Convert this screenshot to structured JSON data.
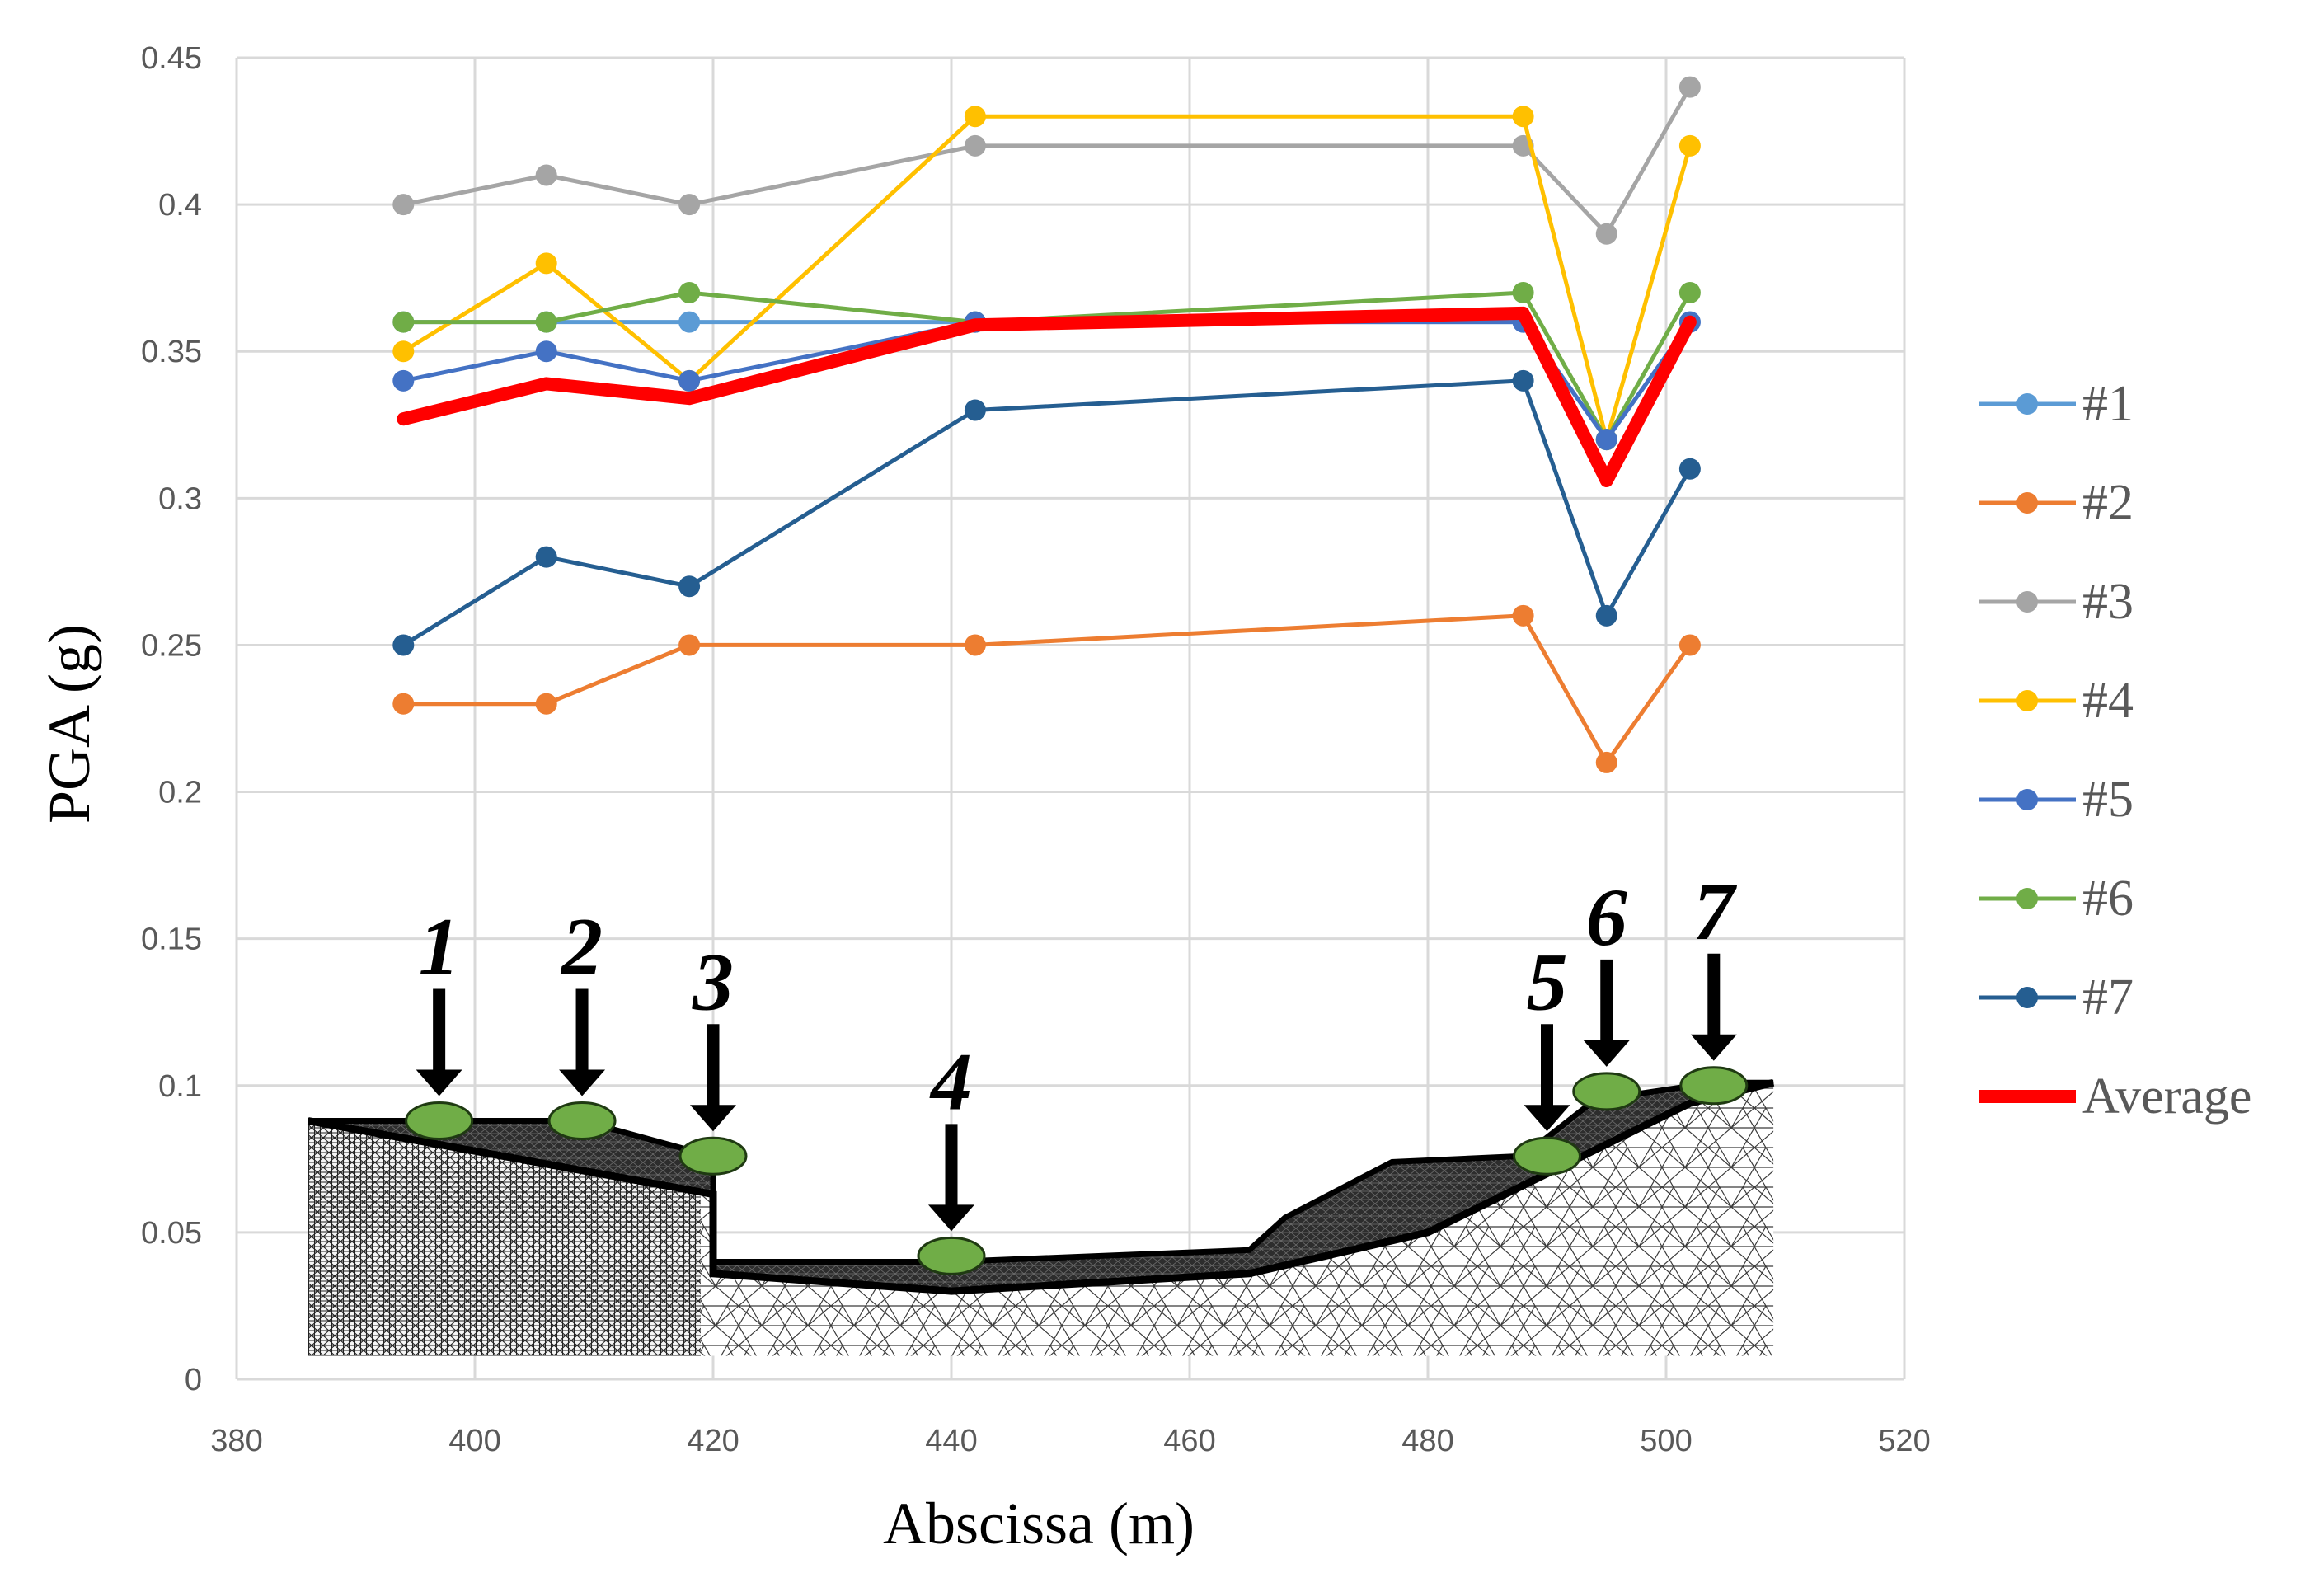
{
  "chart_data": {
    "type": "line",
    "title": "",
    "xlabel": "Abscissa (m)",
    "ylabel": "PGA (g)",
    "xlim": [
      380,
      520
    ],
    "ylim": [
      0,
      0.45
    ],
    "xticks": [
      380,
      400,
      420,
      440,
      460,
      480,
      500,
      520
    ],
    "yticks": [
      0,
      0.05,
      0.1,
      0.15,
      0.2,
      0.25,
      0.3,
      0.35,
      0.4,
      0.45
    ],
    "xtick_labels": [
      "380",
      "400",
      "420",
      "440",
      "460",
      "480",
      "500",
      "520"
    ],
    "ytick_labels": [
      "0",
      "0.05",
      "0.1",
      "0.15",
      "0.2",
      "0.25",
      "0.3",
      "0.35",
      "0.4",
      "0.45"
    ],
    "grid": true,
    "legend_position": "right",
    "x": [
      394,
      406,
      418,
      442,
      488,
      495,
      502
    ],
    "series": [
      {
        "name": "#1",
        "color": "#5B9BD5",
        "values": [
          0.36,
          0.36,
          0.36,
          0.36,
          0.36,
          0.32,
          0.36
        ]
      },
      {
        "name": "#2",
        "color": "#ED7D31",
        "values": [
          0.23,
          0.23,
          0.25,
          0.25,
          0.26,
          0.21,
          0.25
        ]
      },
      {
        "name": "#3",
        "color": "#A5A5A5",
        "values": [
          0.4,
          0.41,
          0.4,
          0.42,
          0.42,
          0.39,
          0.44
        ]
      },
      {
        "name": "#4",
        "color": "#FFC000",
        "values": [
          0.35,
          0.38,
          0.34,
          0.43,
          0.43,
          0.32,
          0.42
        ]
      },
      {
        "name": "#5",
        "color": "#4472C4",
        "values": [
          0.34,
          0.35,
          0.34,
          0.36,
          0.36,
          0.32,
          0.36
        ]
      },
      {
        "name": "#6",
        "color": "#70AD47",
        "values": [
          0.36,
          0.36,
          0.37,
          0.36,
          0.37,
          0.32,
          0.37
        ]
      },
      {
        "name": "#7",
        "color": "#255E91",
        "values": [
          0.25,
          0.28,
          0.27,
          0.33,
          0.34,
          0.26,
          0.31
        ]
      },
      {
        "name": "Average",
        "color": "#FF0000",
        "values": [
          0.327,
          0.339,
          0.334,
          0.359,
          0.363,
          0.306,
          0.36
        ],
        "markers": false,
        "thick": true
      }
    ],
    "inset": {
      "description_type": "cross-section mesh",
      "station_labels": [
        "1",
        "2",
        "3",
        "4",
        "5",
        "6",
        "7"
      ],
      "station_x": [
        397,
        409,
        420,
        440,
        490,
        495,
        504
      ],
      "station_y": [
        0.088,
        0.088,
        0.076,
        0.042,
        0.076,
        0.098,
        0.1
      ],
      "surface_profile": [
        [
          386,
          0.088
        ],
        [
          397,
          0.088
        ],
        [
          409,
          0.088
        ],
        [
          418,
          0.078
        ],
        [
          420,
          0.076
        ],
        [
          420,
          0.04
        ],
        [
          440,
          0.04
        ],
        [
          465,
          0.044
        ],
        [
          468,
          0.055
        ],
        [
          477,
          0.074
        ],
        [
          488,
          0.076
        ],
        [
          494,
          0.095
        ],
        [
          504,
          0.101
        ],
        [
          509,
          0.101
        ]
      ],
      "bedrock_profile": [
        [
          386,
          0.088
        ],
        [
          420,
          0.063
        ],
        [
          420,
          0.036
        ],
        [
          440,
          0.03
        ],
        [
          465,
          0.036
        ],
        [
          480,
          0.05
        ],
        [
          494,
          0.078
        ],
        [
          502,
          0.094
        ],
        [
          509,
          0.101
        ]
      ],
      "domain": {
        "x": [
          386,
          509
        ],
        "y": [
          0.008,
          0.101
        ]
      },
      "mesh_color": "#000000",
      "layer_color": "#333333",
      "marker_color": "#70AD47"
    }
  }
}
